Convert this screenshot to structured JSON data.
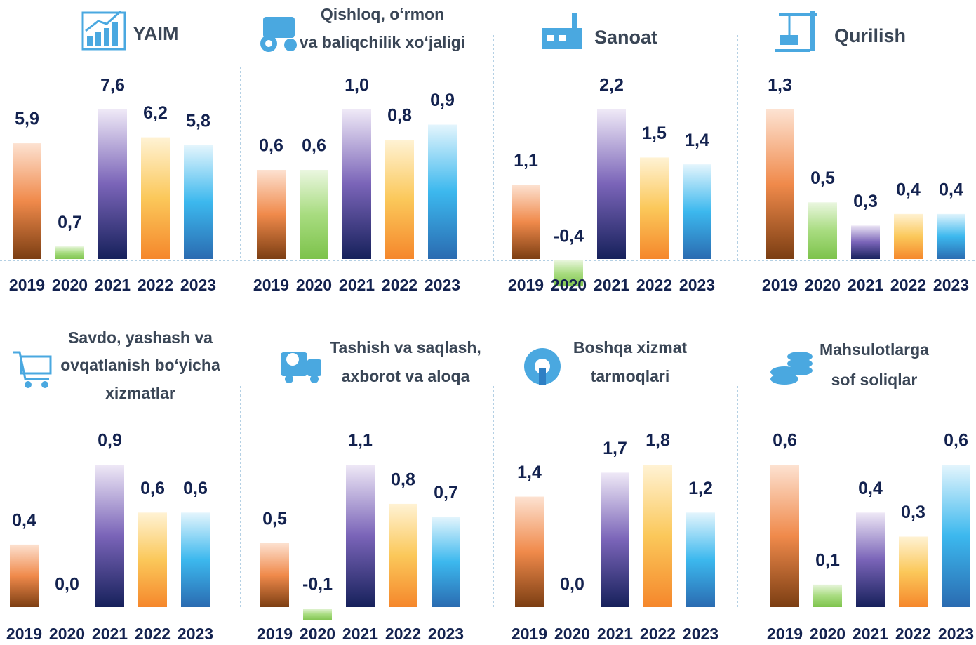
{
  "chart_data": [
    {
      "type": "bar",
      "title": [
        "YAIM"
      ],
      "categories": [
        "2019",
        "2020",
        "2021",
        "2022",
        "2023"
      ],
      "values": [
        5.9,
        0.7,
        7.6,
        6.2,
        5.8
      ],
      "value_labels": [
        "5,9",
        "0,7",
        "7,6",
        "6,2",
        "5,8"
      ],
      "colors": [
        [
          "#fde3d3",
          "#f08a4b",
          "#7a3d12"
        ],
        [
          "#ecf7e2",
          "#a8dc80",
          "#7cc24a"
        ],
        [
          "#f0eaf7",
          "#7a64b8",
          "#15205a"
        ],
        [
          "#fff3d6",
          "#fbc85a",
          "#f5862b"
        ],
        [
          "#e6f6fd",
          "#3cb8ee",
          "#2a6ab0"
        ]
      ]
    },
    {
      "type": "bar",
      "title": [
        "Qishloq, o‘rmon",
        "va baliqchilik xo‘jaligi"
      ],
      "categories": [
        "2019",
        "2020",
        "2021",
        "2022",
        "2023"
      ],
      "values": [
        0.6,
        0.6,
        1.0,
        0.8,
        0.9
      ],
      "value_labels": [
        "0,6",
        "0,6",
        "1,0",
        "0,8",
        "0,9"
      ],
      "colors": [
        [
          "#fde3d3",
          "#f08a4b",
          "#7a3d12"
        ],
        [
          "#ecf7e2",
          "#a8dc80",
          "#7cc24a"
        ],
        [
          "#f0eaf7",
          "#7a64b8",
          "#15205a"
        ],
        [
          "#fff3d6",
          "#fbc85a",
          "#f5862b"
        ],
        [
          "#e6f6fd",
          "#3cb8ee",
          "#2a6ab0"
        ]
      ]
    },
    {
      "type": "bar",
      "title": [
        "Sanoat"
      ],
      "categories": [
        "2019",
        "2020",
        "2021",
        "2022",
        "2023"
      ],
      "values": [
        1.1,
        -0.4,
        2.2,
        1.5,
        1.4
      ],
      "value_labels": [
        "1,1",
        "-0,4",
        "2,2",
        "1,5",
        "1,4"
      ],
      "colors": [
        [
          "#fde3d3",
          "#f08a4b",
          "#7a3d12"
        ],
        [
          "#ecf7e2",
          "#a8dc80",
          "#7cc24a"
        ],
        [
          "#f0eaf7",
          "#7a64b8",
          "#15205a"
        ],
        [
          "#fff3d6",
          "#fbc85a",
          "#f5862b"
        ],
        [
          "#e6f6fd",
          "#3cb8ee",
          "#2a6ab0"
        ]
      ]
    },
    {
      "type": "bar",
      "title": [
        "Qurilish"
      ],
      "categories": [
        "2019",
        "2020",
        "2021",
        "2022",
        "2023"
      ],
      "values": [
        1.3,
        0.5,
        0.3,
        0.4,
        0.4
      ],
      "value_labels": [
        "1,3",
        "0,5",
        "0,3",
        "0,4",
        "0,4"
      ],
      "colors": [
        [
          "#fde3d3",
          "#f08a4b",
          "#7a3d12"
        ],
        [
          "#ecf7e2",
          "#a8dc80",
          "#7cc24a"
        ],
        [
          "#f0eaf7",
          "#7a64b8",
          "#15205a"
        ],
        [
          "#fff3d6",
          "#fbc85a",
          "#f5862b"
        ],
        [
          "#e6f6fd",
          "#3cb8ee",
          "#2a6ab0"
        ]
      ]
    },
    {
      "type": "bar",
      "title": [
        "Savdo, yashash va",
        "ovqatlanish bo‘yicha",
        "xizmatlar"
      ],
      "categories": [
        "2019",
        "2020",
        "2021",
        "2022",
        "2023"
      ],
      "values": [
        0.4,
        0.0,
        0.9,
        0.6,
        0.6
      ],
      "value_labels": [
        "0,4",
        "0,0",
        "0,9",
        "0,6",
        "0,6"
      ],
      "colors": [
        [
          "#fde3d3",
          "#f08a4b",
          "#7a3d12"
        ],
        [
          "#ecf7e2",
          "#a8dc80",
          "#7cc24a"
        ],
        [
          "#f0eaf7",
          "#7a64b8",
          "#15205a"
        ],
        [
          "#fff3d6",
          "#fbc85a",
          "#f5862b"
        ],
        [
          "#e6f6fd",
          "#3cb8ee",
          "#2a6ab0"
        ]
      ]
    },
    {
      "type": "bar",
      "title": [
        "Tashish va saqlash,",
        "axborot va aloqa"
      ],
      "categories": [
        "2019",
        "2020",
        "2021",
        "2022",
        "2023"
      ],
      "values": [
        0.5,
        -0.1,
        1.1,
        0.8,
        0.7
      ],
      "value_labels": [
        "0,5",
        "-0,1",
        "1,1",
        "0,8",
        "0,7"
      ],
      "colors": [
        [
          "#fde3d3",
          "#f08a4b",
          "#7a3d12"
        ],
        [
          "#ecf7e2",
          "#a8dc80",
          "#7cc24a"
        ],
        [
          "#f0eaf7",
          "#7a64b8",
          "#15205a"
        ],
        [
          "#fff3d6",
          "#fbc85a",
          "#f5862b"
        ],
        [
          "#e6f6fd",
          "#3cb8ee",
          "#2a6ab0"
        ]
      ]
    },
    {
      "type": "bar",
      "title": [
        "Boshqa xizmat",
        "tarmoqlari"
      ],
      "categories": [
        "2019",
        "2020",
        "2021",
        "2022",
        "2023"
      ],
      "values": [
        1.4,
        0.0,
        1.7,
        1.8,
        1.2
      ],
      "value_labels": [
        "1,4",
        "0,0",
        "1,7",
        "1,8",
        "1,2"
      ],
      "colors": [
        [
          "#fde3d3",
          "#f08a4b",
          "#7a3d12"
        ],
        [
          "#ecf7e2",
          "#a8dc80",
          "#7cc24a"
        ],
        [
          "#f0eaf7",
          "#7a64b8",
          "#15205a"
        ],
        [
          "#fff3d6",
          "#fbc85a",
          "#f5862b"
        ],
        [
          "#e6f6fd",
          "#3cb8ee",
          "#2a6ab0"
        ]
      ]
    },
    {
      "type": "bar",
      "title": [
        "Mahsulotlarga",
        "sof soliqlar"
      ],
      "categories": [
        "2019",
        "2020",
        "2021",
        "2022",
        "2023"
      ],
      "values": [
        0.6,
        0.1,
        0.4,
        0.3,
        0.6
      ],
      "value_labels": [
        "0,6",
        "0,1",
        "0,4",
        "0,3",
        "0,6"
      ],
      "colors": [
        [
          "#fde3d3",
          "#f08a4b",
          "#7a3d12"
        ],
        [
          "#ecf7e2",
          "#a8dc80",
          "#7cc24a"
        ],
        [
          "#f0eaf7",
          "#7a64b8",
          "#15205a"
        ],
        [
          "#fff3d6",
          "#fbc85a",
          "#f5862b"
        ],
        [
          "#e6f6fd",
          "#3cb8ee",
          "#2a6ab0"
        ]
      ]
    }
  ]
}
